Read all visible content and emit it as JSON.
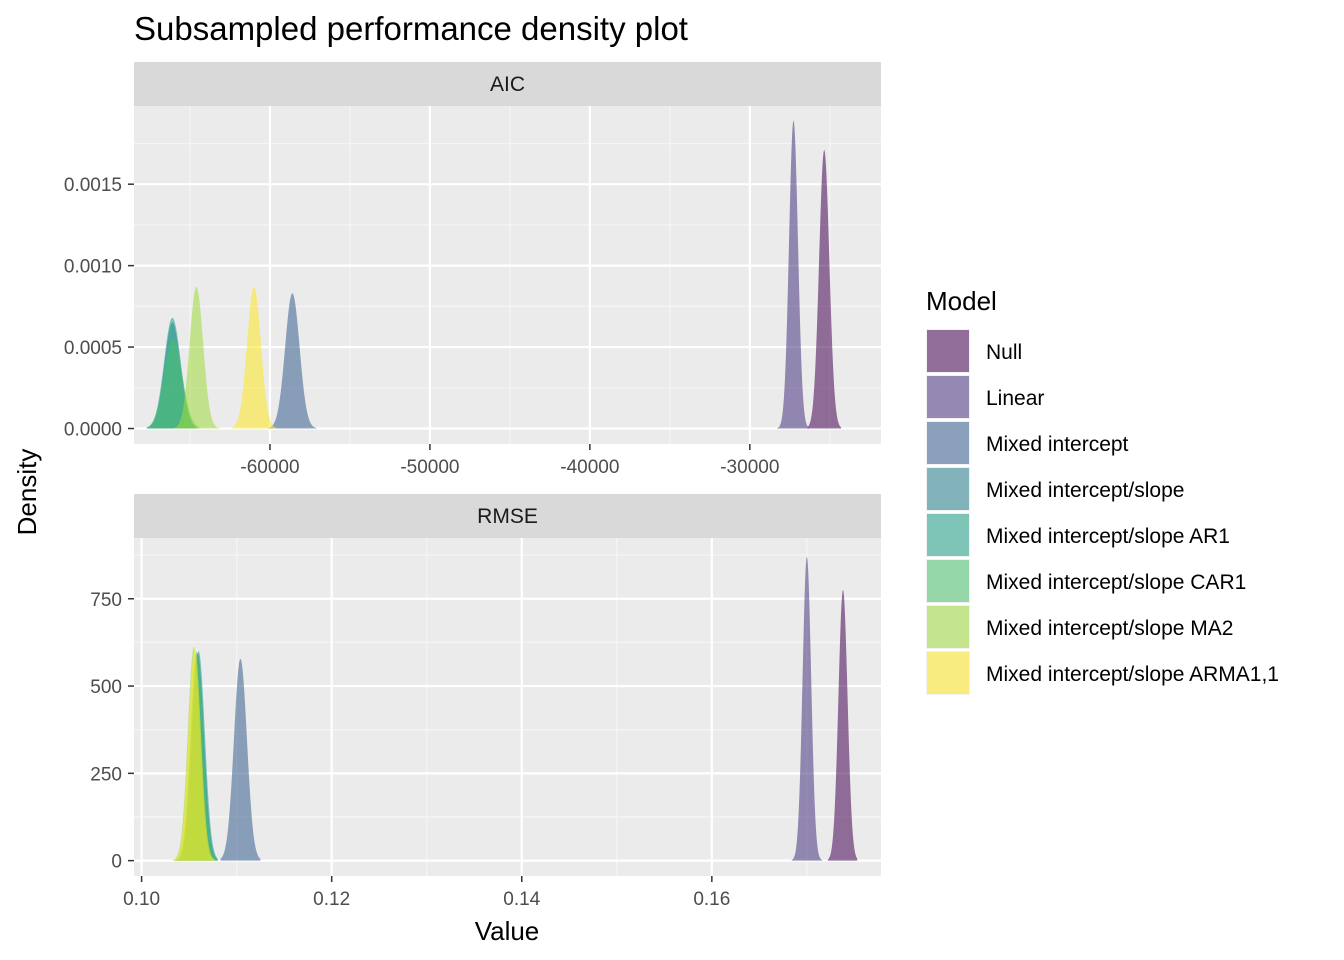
{
  "chart_data": {
    "type": "area",
    "title": "Subsampled performance density plot",
    "xlabel": "Value",
    "ylabel": "Density",
    "legend": {
      "title": "Model",
      "placement": "right",
      "entries": [
        {
          "name": "Null",
          "color": "#440154"
        },
        {
          "name": "Linear",
          "color": "#46337E"
        },
        {
          "name": "Mixed intercept",
          "color": "#365C8D"
        },
        {
          "name": "Mixed intercept/slope",
          "color": "#277F8E"
        },
        {
          "name": "Mixed intercept/slope AR1",
          "color": "#1FA187"
        },
        {
          "name": "Mixed intercept/slope CAR1",
          "color": "#4AC16D"
        },
        {
          "name": "Mixed intercept/slope MA2",
          "color": "#9FDA3A"
        },
        {
          "name": "Mixed intercept/slope ARMA1,1",
          "color": "#FDE725"
        }
      ]
    },
    "grid": true,
    "facets": [
      {
        "name": "AIC",
        "xlim": [
          -68500,
          -21800
        ],
        "ylim": [
          -9.5e-05,
          0.00198
        ],
        "x_ticks": [
          -60000,
          -50000,
          -40000,
          -30000
        ],
        "x_tick_labels": [
          "-60000",
          "-50000",
          "-40000",
          "-30000"
        ],
        "y_ticks": [
          0,
          0.0005,
          0.001,
          0.0015
        ],
        "y_tick_labels": [
          "0.0000",
          "0.0005",
          "0.0010",
          "0.0015"
        ],
        "series": [
          {
            "name": "Null",
            "mean": -25350,
            "sd": 320,
            "peak": 0.00171,
            "min": -26400,
            "max": -24300
          },
          {
            "name": "Linear",
            "mean": -27270,
            "sd": 280,
            "peak": 0.00189,
            "min": -28300,
            "max": -26300
          },
          {
            "name": "Mixed intercept",
            "mean": -58600,
            "sd": 450,
            "peak": 0.00083,
            "min": -60100,
            "max": -57100
          },
          {
            "name": "Mixed intercept/slope",
            "mean": -66100,
            "sd": 500,
            "peak": 0.00065,
            "min": -67700,
            "max": -64600
          },
          {
            "name": "Mixed intercept/slope AR1",
            "mean": -66100,
            "sd": 520,
            "peak": 0.00068,
            "min": -67700,
            "max": -64600
          },
          {
            "name": "Mixed intercept/slope CAR1",
            "mean": -66050,
            "sd": 560,
            "peak": 0.00055,
            "min": -67700,
            "max": -64400
          },
          {
            "name": "Mixed intercept/slope MA2",
            "mean": -64600,
            "sd": 420,
            "peak": 0.00087,
            "min": -66100,
            "max": -63100
          },
          {
            "name": "Mixed intercept/slope ARMA1,1",
            "mean": -61000,
            "sd": 430,
            "peak": 0.00087,
            "min": -62400,
            "max": -59600
          }
        ]
      },
      {
        "name": "RMSE",
        "xlim": [
          0.0992,
          0.1778
        ],
        "ylim": [
          -44,
          924
        ],
        "x_ticks": [
          0.1,
          0.12,
          0.14,
          0.16
        ],
        "x_tick_labels": [
          "0.10",
          "0.12",
          "0.14",
          "0.16"
        ],
        "y_ticks": [
          0,
          250,
          500,
          750
        ],
        "y_tick_labels": [
          "0",
          "250",
          "500",
          "750"
        ],
        "series": [
          {
            "name": "Null",
            "mean": 0.1738,
            "sd": 0.00048,
            "peak": 775,
            "min": 0.1722,
            "max": 0.1753
          },
          {
            "name": "Linear",
            "mean": 0.17,
            "sd": 0.00045,
            "peak": 870,
            "min": 0.1684,
            "max": 0.1716
          },
          {
            "name": "Mixed intercept",
            "mean": 0.1104,
            "sd": 0.00068,
            "peak": 578,
            "min": 0.1083,
            "max": 0.1125
          },
          {
            "name": "Mixed intercept/slope",
            "mean": 0.1059,
            "sd": 0.00066,
            "peak": 595,
            "min": 0.1035,
            "max": 0.108
          },
          {
            "name": "Mixed intercept/slope AR1",
            "mean": 0.106,
            "sd": 0.00066,
            "peak": 600,
            "min": 0.1035,
            "max": 0.108
          },
          {
            "name": "Mixed intercept/slope CAR1",
            "mean": 0.1058,
            "sd": 0.00066,
            "peak": 598,
            "min": 0.1035,
            "max": 0.108
          },
          {
            "name": "Mixed intercept/slope MA2",
            "mean": 0.1055,
            "sd": 0.00064,
            "peak": 612,
            "min": 0.1032,
            "max": 0.1078
          },
          {
            "name": "Mixed intercept/slope ARMA1,1",
            "mean": 0.1056,
            "sd": 0.00064,
            "peak": 605,
            "min": 0.1034,
            "max": 0.1078
          }
        ]
      }
    ]
  }
}
